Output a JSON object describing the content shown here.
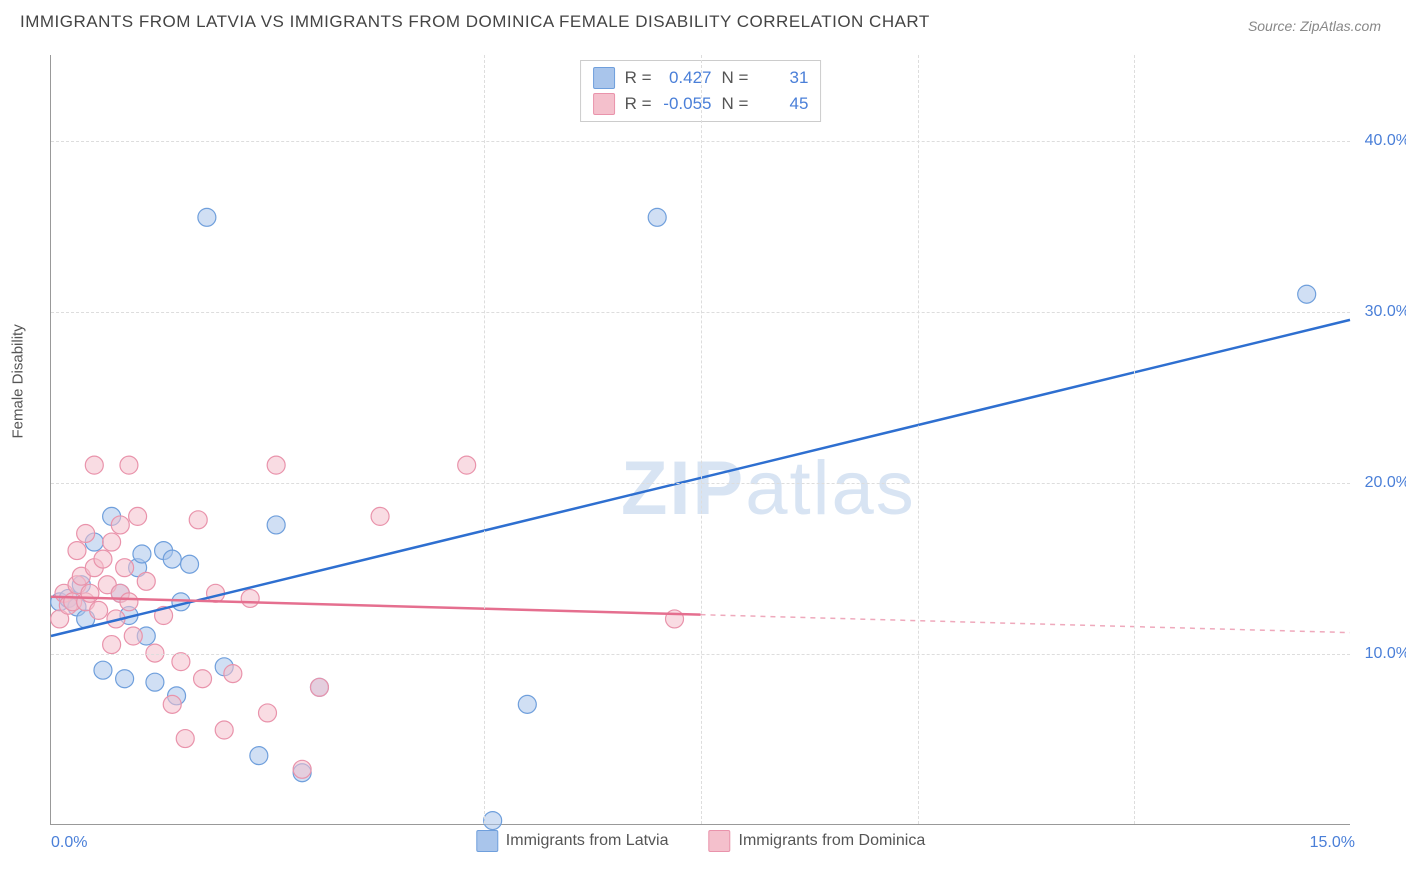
{
  "title": "IMMIGRANTS FROM LATVIA VS IMMIGRANTS FROM DOMINICA FEMALE DISABILITY CORRELATION CHART",
  "source": "Source: ZipAtlas.com",
  "watermark_bold": "ZIP",
  "watermark_rest": "atlas",
  "ylabel": "Female Disability",
  "chart": {
    "type": "scatter-with-regression",
    "xlim": [
      0,
      15
    ],
    "ylim": [
      0,
      45
    ],
    "x_tick_min_label": "0.0%",
    "x_tick_max_label": "15.0%",
    "y_ticks": [
      {
        "value": 10,
        "label": "10.0%"
      },
      {
        "value": 20,
        "label": "20.0%"
      },
      {
        "value": 30,
        "label": "30.0%"
      },
      {
        "value": 40,
        "label": "40.0%"
      }
    ],
    "x_gridlines": [
      0,
      5,
      7.5,
      10,
      12.5
    ],
    "background_color": "#ffffff",
    "grid_color": "#dddddd",
    "axis_color": "#999999",
    "marker_radius": 9,
    "marker_opacity": 0.55,
    "line_width": 2.5,
    "series": [
      {
        "name": "Immigrants from Latvia",
        "color_fill": "#a9c5eb",
        "color_stroke": "#6f9fdc",
        "color_line": "#2e6fd0",
        "R": "0.427",
        "N": "31",
        "regression": {
          "x1": 0,
          "y1": 11.0,
          "x2": 15,
          "y2": 29.5,
          "solid_until_x": 15
        },
        "points": [
          [
            0.1,
            13.0
          ],
          [
            0.2,
            13.2
          ],
          [
            0.3,
            12.7
          ],
          [
            0.35,
            14.0
          ],
          [
            0.4,
            12.0
          ],
          [
            0.5,
            16.5
          ],
          [
            0.6,
            9.0
          ],
          [
            0.7,
            18.0
          ],
          [
            0.8,
            13.5
          ],
          [
            0.85,
            8.5
          ],
          [
            0.9,
            12.2
          ],
          [
            1.0,
            15.0
          ],
          [
            1.05,
            15.8
          ],
          [
            1.1,
            11.0
          ],
          [
            1.2,
            8.3
          ],
          [
            1.3,
            16.0
          ],
          [
            1.4,
            15.5
          ],
          [
            1.45,
            7.5
          ],
          [
            1.5,
            13.0
          ],
          [
            1.6,
            15.2
          ],
          [
            1.8,
            35.5
          ],
          [
            2.0,
            9.2
          ],
          [
            2.4,
            4.0
          ],
          [
            2.6,
            17.5
          ],
          [
            2.9,
            3.0
          ],
          [
            3.1,
            8.0
          ],
          [
            5.1,
            0.2
          ],
          [
            5.5,
            7.0
          ],
          [
            7.0,
            35.5
          ],
          [
            14.5,
            31.0
          ]
        ]
      },
      {
        "name": "Immigrants from Dominica",
        "color_fill": "#f4c0cc",
        "color_stroke": "#e993ab",
        "color_line": "#e56f8f",
        "R": "-0.055",
        "N": "45",
        "regression": {
          "x1": 0,
          "y1": 13.3,
          "x2": 15,
          "y2": 11.2,
          "solid_until_x": 7.5
        },
        "points": [
          [
            0.1,
            12.0
          ],
          [
            0.15,
            13.5
          ],
          [
            0.2,
            12.8
          ],
          [
            0.25,
            13.0
          ],
          [
            0.3,
            14.0
          ],
          [
            0.3,
            16.0
          ],
          [
            0.35,
            14.5
          ],
          [
            0.4,
            17.0
          ],
          [
            0.4,
            13.0
          ],
          [
            0.45,
            13.5
          ],
          [
            0.5,
            15.0
          ],
          [
            0.5,
            21.0
          ],
          [
            0.55,
            12.5
          ],
          [
            0.6,
            15.5
          ],
          [
            0.65,
            14.0
          ],
          [
            0.7,
            16.5
          ],
          [
            0.7,
            10.5
          ],
          [
            0.75,
            12.0
          ],
          [
            0.8,
            17.5
          ],
          [
            0.8,
            13.5
          ],
          [
            0.85,
            15.0
          ],
          [
            0.9,
            13.0
          ],
          [
            0.9,
            21.0
          ],
          [
            0.95,
            11.0
          ],
          [
            1.0,
            18.0
          ],
          [
            1.1,
            14.2
          ],
          [
            1.2,
            10.0
          ],
          [
            1.3,
            12.2
          ],
          [
            1.4,
            7.0
          ],
          [
            1.5,
            9.5
          ],
          [
            1.55,
            5.0
          ],
          [
            1.7,
            17.8
          ],
          [
            1.75,
            8.5
          ],
          [
            1.9,
            13.5
          ],
          [
            2.0,
            5.5
          ],
          [
            2.1,
            8.8
          ],
          [
            2.3,
            13.2
          ],
          [
            2.5,
            6.5
          ],
          [
            2.6,
            21.0
          ],
          [
            2.9,
            3.2
          ],
          [
            3.1,
            8.0
          ],
          [
            3.8,
            18.0
          ],
          [
            4.8,
            21.0
          ],
          [
            7.2,
            12.0
          ]
        ]
      }
    ]
  },
  "legend_top_labels": {
    "R": "R =",
    "N": "N ="
  }
}
